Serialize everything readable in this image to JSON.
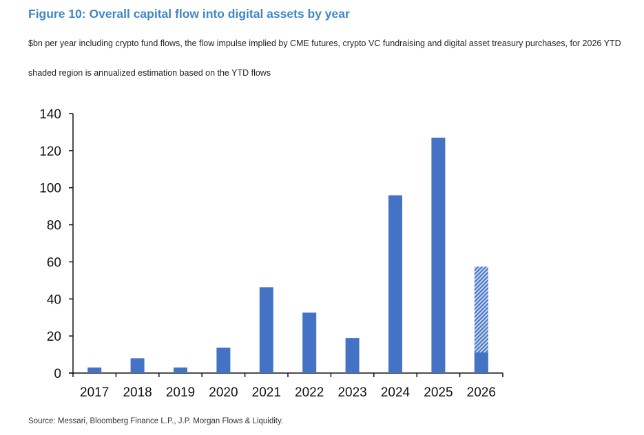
{
  "title": "Figure 10: Overall capital flow into digital assets by year",
  "subtitle_1": "$bn per year including crypto fund flows, the flow impulse implied by CME futures, crypto VC fundraising and digital asset treasury purchases, for 2026 YTD",
  "subtitle_2": "shaded region is annualized estimation based on the YTD flows",
  "source": "Source: Messari, Bloomberg Finance L.P., J.P. Morgan Flows & Liquidity.",
  "colors": {
    "bar": "#4472c4",
    "hatch_bg": "#c9d8f2",
    "title": "#3f86c7"
  },
  "chart_data": {
    "type": "bar",
    "categories": [
      "2017",
      "2018",
      "2019",
      "2020",
      "2021",
      "2022",
      "2023",
      "2024",
      "2025",
      "2026"
    ],
    "values": [
      3,
      8,
      3,
      13.7,
      46.3,
      32.6,
      18.9,
      95.9,
      127,
      11.1
    ],
    "annualized_estimate": {
      "category": "2026",
      "value": 57.4,
      "style": "hatched"
    },
    "ylim": [
      0,
      140
    ],
    "yticks": [
      0,
      20,
      40,
      60,
      80,
      100,
      120,
      140
    ],
    "xlabel": "",
    "ylabel": "",
    "grid": false,
    "legend": "none"
  }
}
